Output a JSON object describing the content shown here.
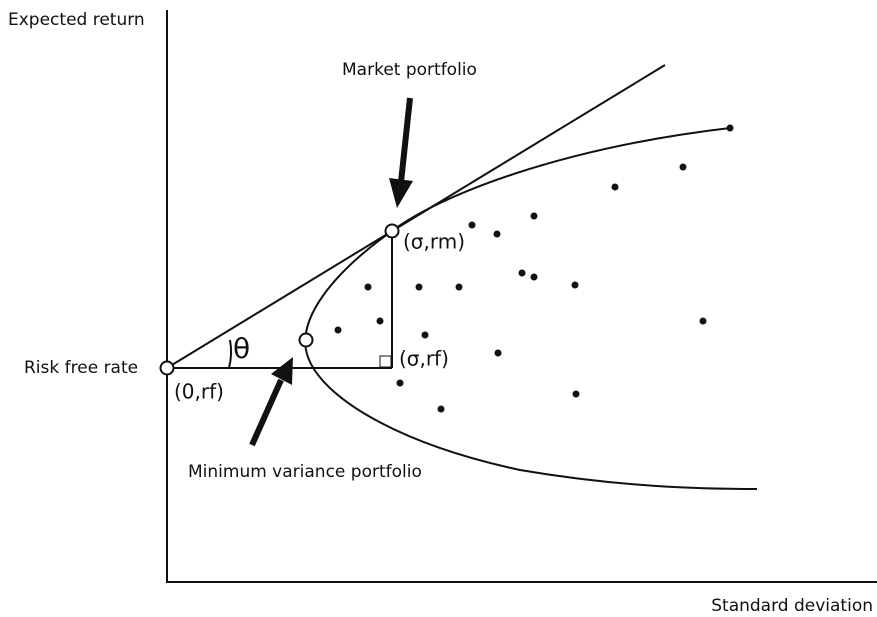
{
  "axes": {
    "y_label": "Expected return",
    "x_label": "Standard deviation"
  },
  "labels": {
    "risk_free_rate": "Risk free rate",
    "market_portfolio": "Market portfolio",
    "minimum_variance_portfolio": "Minimum variance portfolio",
    "market_point": "(σ,rm)",
    "rf_corner": "(σ,rf)",
    "origin_point": "(0,rf)",
    "angle": "θ"
  }
}
